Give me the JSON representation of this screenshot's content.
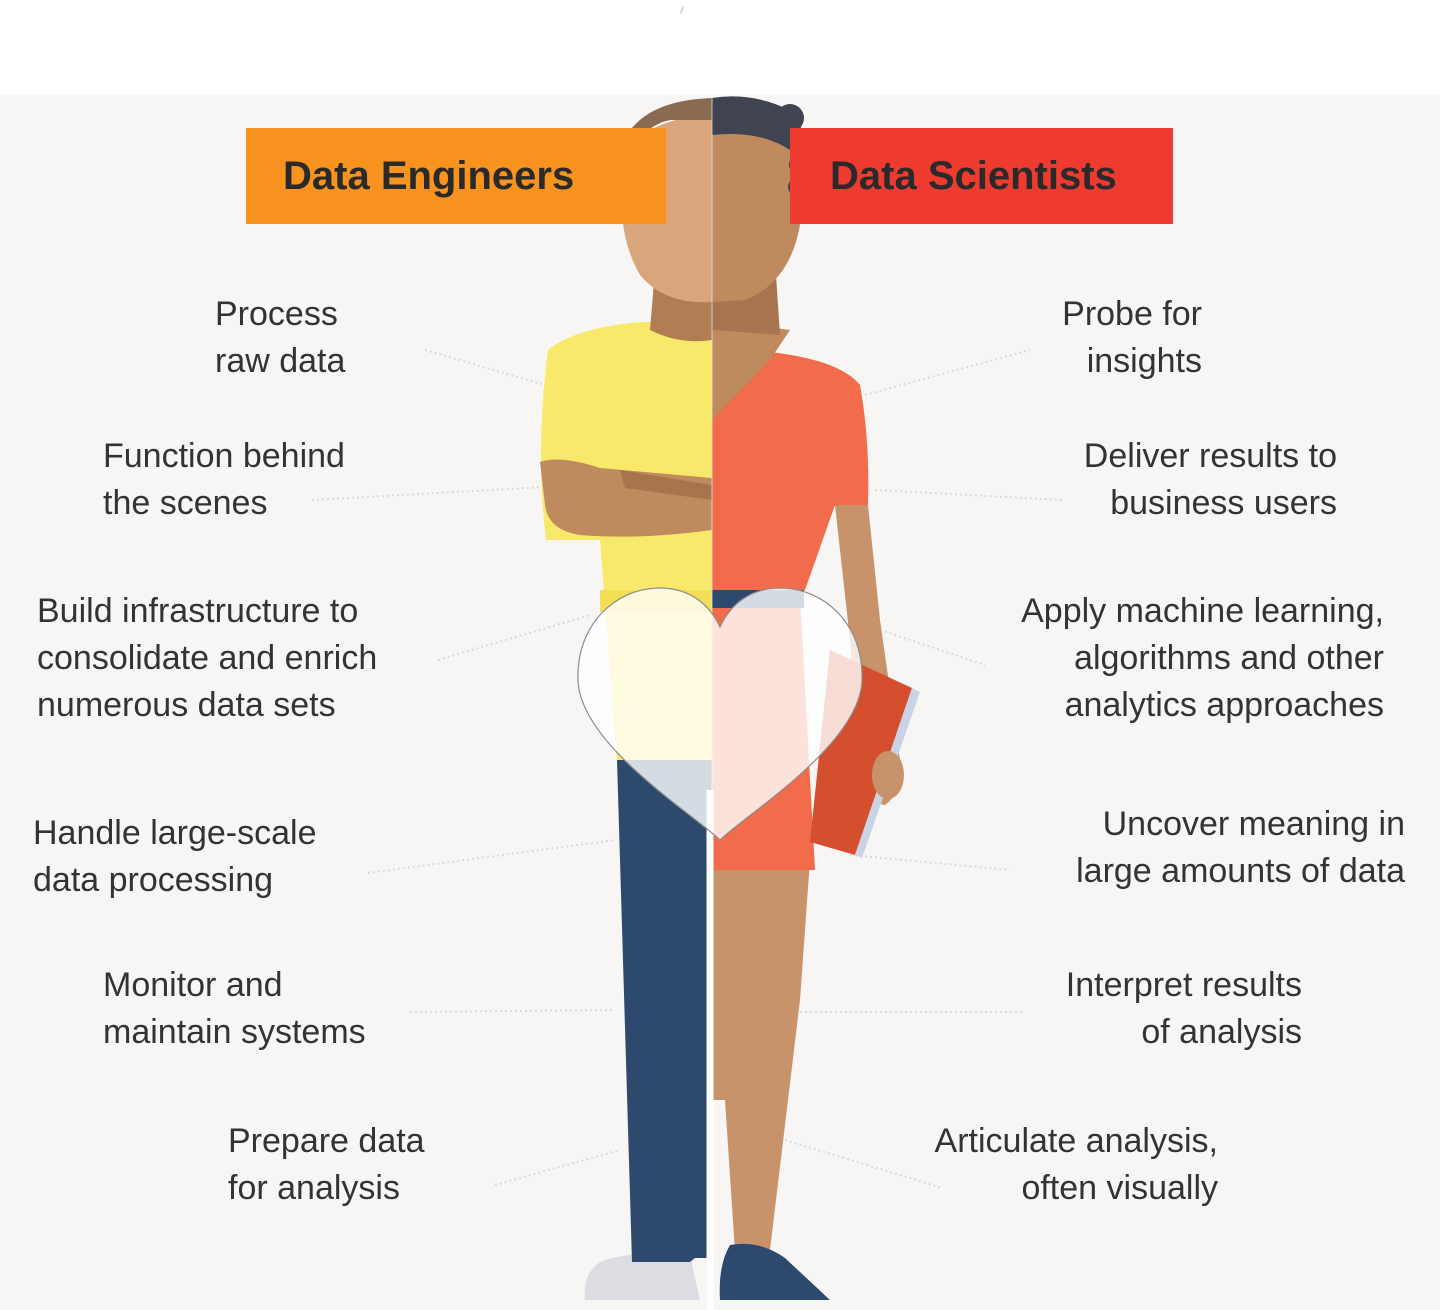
{
  "headers": {
    "engineers": "Data Engineers",
    "scientists": "Data Scientists"
  },
  "engineers": [
    "Process\nraw data",
    "Function behind\nthe scenes",
    "Build infrastructure to\nconsolidate and enrich\nnumerous data sets",
    "Handle large-scale\ndata processing",
    "Monitor and\nmaintain systems",
    "Prepare data\nfor analysis"
  ],
  "scientists": [
    "Probe for\ninsights",
    "Deliver results to\nbusiness users",
    "Apply machine learning,\nalgorithms and other\nanalytics approaches",
    "Uncover meaning in\nlarge amounts of data",
    "Interpret results\nof analysis",
    "Articulate analysis,\noften visually"
  ],
  "colors": {
    "engineers_header": "#f7931e",
    "scientists_header": "#ef3b2f",
    "shirt_yellow": "#f9e96a",
    "top_coral": "#f26b4a",
    "skin_light": "#d9a57a",
    "skin_dark": "#c08a5f",
    "pants_navy": "#2d4a6e"
  },
  "icons": {
    "overlay": "heart-icon"
  }
}
